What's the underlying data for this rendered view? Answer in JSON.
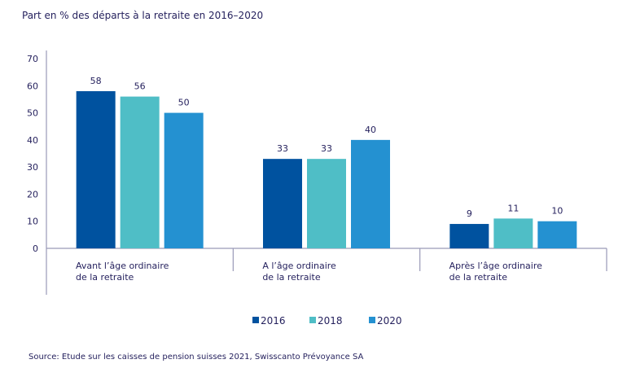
{
  "chart_data": {
    "type": "bar",
    "title": "Part en % des départs à la retraite en 2016–2020",
    "categories": [
      [
        "Avant l’âge ordinaire",
        "de la retraite"
      ],
      [
        "A l’âge ordinaire",
        "de la retraite"
      ],
      [
        "Après l’âge ordinaire",
        "de la retraite"
      ]
    ],
    "series": [
      {
        "name": "2016",
        "color": "#00529f",
        "values": [
          58,
          33,
          9
        ]
      },
      {
        "name": "2018",
        "color": "#4fbec6",
        "values": [
          56,
          33,
          11
        ]
      },
      {
        "name": "2020",
        "color": "#2491d1",
        "values": [
          50,
          40,
          10
        ]
      }
    ],
    "ylim": [
      0,
      70
    ],
    "yticks": [
      0,
      10,
      20,
      30,
      40,
      50,
      60,
      70
    ],
    "grid": false,
    "legend_placement": "bottom-center",
    "source": "Source: Etude sur les caisses de pension suisses 2021, Swisscanto Prévoyance SA"
  }
}
